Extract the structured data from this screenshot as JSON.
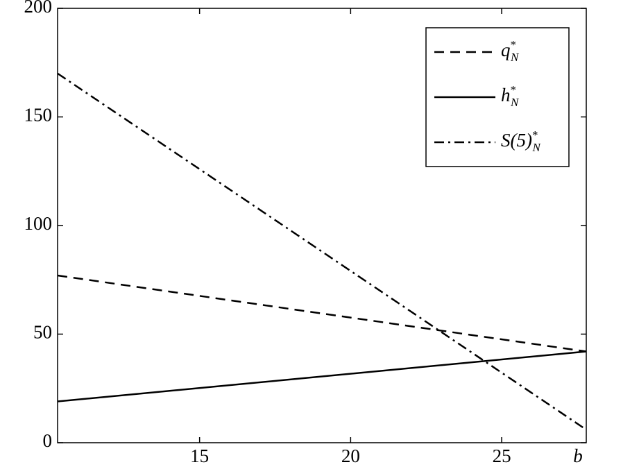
{
  "chart_data": {
    "type": "line",
    "x_label": "b",
    "xlim": [
      10.3,
      27.8
    ],
    "xticks": [
      15,
      20,
      25
    ],
    "ylim": [
      0,
      200
    ],
    "yticks": [
      0,
      50,
      100,
      150,
      200
    ],
    "legend": "upper right",
    "series": [
      {
        "name": "q*N",
        "color": "#000000",
        "style": "dashed",
        "x": [
          10.3,
          27.8
        ],
        "values": [
          77,
          42
        ]
      },
      {
        "name": "h*N",
        "color": "#000000",
        "style": "solid",
        "x": [
          10.3,
          27.8
        ],
        "values": [
          19,
          42
        ]
      },
      {
        "name": "S(5)*N",
        "color": "#000000",
        "style": "dashdot",
        "x": [
          10.3,
          27.8
        ],
        "values": [
          170,
          6
        ]
      }
    ]
  }
}
